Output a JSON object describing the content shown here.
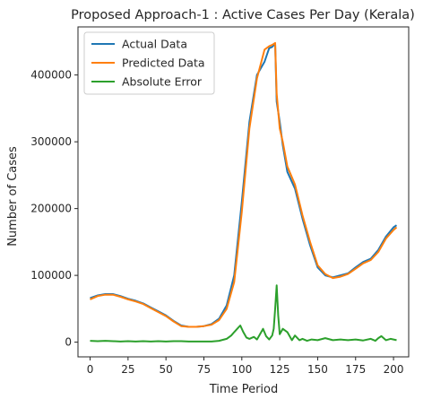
{
  "chart_data": {
    "type": "line",
    "title": "Proposed Approach-1 : Active Cases Per Day (Kerala)",
    "xlabel": "Time Period",
    "ylabel": "Number of Cases",
    "xlim": [
      -8,
      210
    ],
    "ylim": [
      -22000,
      472000
    ],
    "xticks": [
      0,
      25,
      50,
      75,
      100,
      125,
      150,
      175,
      200
    ],
    "yticks": [
      0,
      100000,
      200000,
      300000,
      400000
    ],
    "grid": false,
    "legend_position": "top-left",
    "series": [
      {
        "name": "Actual Data",
        "color": "#1f77b4",
        "x": [
          0,
          5,
          10,
          15,
          20,
          25,
          30,
          35,
          40,
          45,
          50,
          55,
          60,
          65,
          70,
          75,
          80,
          85,
          90,
          95,
          100,
          105,
          110,
          115,
          118,
          120,
          122,
          123,
          125,
          127,
          130,
          135,
          140,
          145,
          150,
          155,
          160,
          165,
          170,
          175,
          180,
          185,
          190,
          195,
          200,
          202
        ],
        "y": [
          66000,
          70000,
          72000,
          72000,
          69000,
          65000,
          62000,
          58000,
          52000,
          46000,
          40000,
          32000,
          25000,
          23000,
          23000,
          24000,
          27000,
          35000,
          55000,
          100000,
          210000,
          330000,
          400000,
          420000,
          440000,
          442000,
          447000,
          360000,
          330000,
          295000,
          255000,
          230000,
          185000,
          145000,
          112000,
          100000,
          97000,
          100000,
          103000,
          112000,
          120000,
          125000,
          138000,
          158000,
          172000,
          175000
        ]
      },
      {
        "name": "Predicted Data",
        "color": "#ff7f0e",
        "x": [
          0,
          5,
          10,
          15,
          20,
          25,
          30,
          35,
          40,
          45,
          50,
          55,
          60,
          65,
          70,
          75,
          80,
          85,
          90,
          95,
          100,
          105,
          110,
          115,
          118,
          120,
          122,
          123,
          125,
          127,
          130,
          135,
          140,
          145,
          150,
          155,
          160,
          165,
          170,
          175,
          180,
          185,
          190,
          195,
          200,
          202
        ],
        "y": [
          64000,
          69000,
          71000,
          71000,
          68000,
          64000,
          61000,
          57000,
          51000,
          45000,
          39000,
          31000,
          24000,
          23000,
          23000,
          24000,
          26000,
          33000,
          50000,
          90000,
          195000,
          320000,
          395000,
          438000,
          443000,
          445000,
          448000,
          372000,
          320000,
          300000,
          263000,
          236000,
          190000,
          150000,
          115000,
          102000,
          96000,
          98000,
          102000,
          110000,
          118000,
          123000,
          135000,
          155000,
          168000,
          172000
        ]
      },
      {
        "name": "Absolute Error",
        "color": "#2ca02c",
        "x": [
          0,
          5,
          10,
          15,
          20,
          25,
          30,
          35,
          40,
          45,
          50,
          55,
          60,
          65,
          70,
          75,
          80,
          85,
          90,
          93,
          95,
          97,
          99,
          101,
          103,
          105,
          108,
          110,
          112,
          114,
          116,
          118,
          120,
          121,
          122,
          123,
          124,
          125,
          127,
          130,
          133,
          135,
          138,
          140,
          143,
          146,
          150,
          155,
          160,
          165,
          170,
          175,
          180,
          185,
          188,
          190,
          192,
          195,
          198,
          202
        ],
        "y": [
          2000,
          1500,
          2000,
          1500,
          1000,
          1500,
          1000,
          1500,
          1000,
          1500,
          1000,
          1500,
          1500,
          1000,
          1000,
          1000,
          1000,
          2000,
          5000,
          10000,
          15000,
          20000,
          25000,
          15000,
          7000,
          5000,
          8000,
          4000,
          12000,
          20000,
          9000,
          4000,
          10000,
          20000,
          50000,
          85000,
          40000,
          12000,
          20000,
          15000,
          3000,
          10000,
          3000,
          5000,
          2000,
          4000,
          3000,
          6000,
          3000,
          4000,
          3000,
          4000,
          2500,
          5000,
          2000,
          6000,
          9000,
          3000,
          5000,
          3000
        ]
      }
    ]
  }
}
